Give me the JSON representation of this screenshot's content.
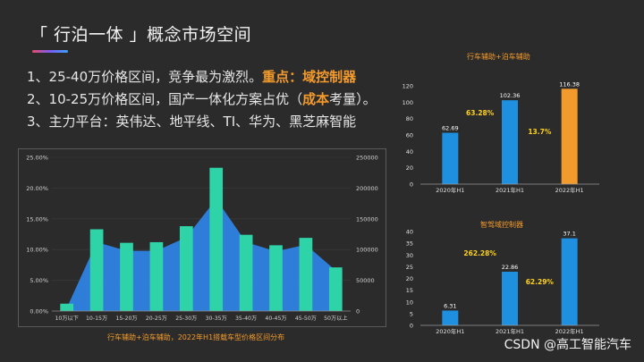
{
  "header": {
    "title": "「 行泊一体 」概念市场空间"
  },
  "bullets": [
    {
      "text": "1、25-40万价格区间，竞争最为激烈。",
      "highlight": "重点：域控制器",
      "tail": ""
    },
    {
      "text": "2、10-25万价格区间，国产一体化方案占优（",
      "highlight": "成本",
      "tail": "考量）。"
    },
    {
      "text": "3、主力平台：英伟达、地平线、TI、华为、黑芝麻智能",
      "highlight": "",
      "tail": ""
    }
  ],
  "colors": {
    "accent": "#f39a2c",
    "bar": "#2fd3a8",
    "area": "#2f86e8",
    "blue_bar": "#1f8fe0",
    "orange_bar": "#f39a2c"
  },
  "chart_data": [
    {
      "type": "bar",
      "categories": [
        "10万以下",
        "10-15万",
        "15-20万",
        "20-25万",
        "25-30万",
        "30-35万",
        "35-40万",
        "40-45万",
        "45-50万",
        "50万以上"
      ],
      "series": [
        {
          "values": [
            0.012,
            0.133,
            0.111,
            0.112,
            0.138,
            0.233,
            0.124,
            0.107,
            0.119,
            0.071
          ],
          "axis": "left"
        },
        {
          "values": [
            5000,
            112000,
            98000,
            98000,
            120000,
            182000,
            112000,
            97000,
            108000,
            66000
          ],
          "axis": "right",
          "render": "area"
        }
      ],
      "ylim_left": [
        0,
        0.25
      ],
      "yticks_left": [
        "0.00%",
        "5.00%",
        "10.00%",
        "15.00%",
        "20.00%",
        "25.00%"
      ],
      "ylim_right": [
        0,
        250000
      ],
      "yticks_right": [
        "0",
        "50000",
        "100000",
        "150000",
        "200000",
        "250000"
      ],
      "caption": "行车辅助+泊车辅助，2022年H1搭载车型价格区间分布"
    },
    {
      "type": "bar",
      "title": "行车辅助+泊车辅助",
      "categories": [
        "2020年H1",
        "2021年H1",
        "2022年H1"
      ],
      "values": [
        62.69,
        102.36,
        116.38
      ],
      "data_labels": [
        "62.69",
        "102.36",
        "116.38"
      ],
      "growth_labels": [
        "63.28%",
        "13.7%"
      ],
      "ylim": [
        0,
        120
      ],
      "yticks": [
        "0",
        "20",
        "40",
        "60",
        "80",
        "100",
        "120"
      ]
    },
    {
      "type": "bar",
      "title": "智驾域控制器",
      "categories": [
        "2020年H1",
        "2021年H1",
        "2022年H1"
      ],
      "values": [
        6.31,
        22.86,
        37.1
      ],
      "data_labels": [
        "6.31",
        "22.86",
        "37.1"
      ],
      "growth_labels": [
        "262.28%",
        "62.29%"
      ],
      "ylim": [
        0,
        40
      ],
      "yticks": [
        "0",
        "5",
        "10",
        "15",
        "20",
        "25",
        "30",
        "35",
        "40"
      ]
    }
  ],
  "watermark": "CSDN @高工智能汽车"
}
